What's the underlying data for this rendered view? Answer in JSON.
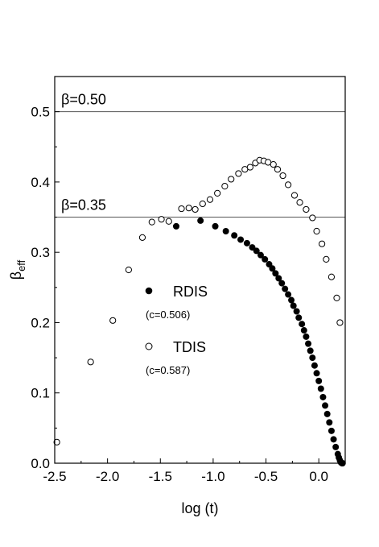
{
  "chart_data": {
    "type": "scatter",
    "title": "",
    "xlabel": "log (t)",
    "ylabel_main": "β",
    "ylabel_sub": "eff",
    "xlim": [
      -2.5,
      0.25
    ],
    "ylim": [
      0.0,
      0.55
    ],
    "x_ticks": [
      -2.5,
      -2.0,
      -1.5,
      -1.0,
      -0.5,
      0.0
    ],
    "x_tick_labels": [
      "-2.5",
      "-2.0",
      "-1.5",
      "-1.0",
      "-0.5",
      "0.0"
    ],
    "y_ticks": [
      0.0,
      0.1,
      0.2,
      0.3,
      0.4,
      0.5
    ],
    "y_tick_labels": [
      "0.0",
      "0.1",
      "0.2",
      "0.3",
      "0.4",
      "0.5"
    ],
    "grid": false,
    "reference_lines": [
      {
        "y": 0.5,
        "label": "β=0.50"
      },
      {
        "y": 0.35,
        "label": "β=0.35"
      }
    ],
    "legend_placement": "center",
    "series": [
      {
        "name": "RDIS",
        "note": "(c=0.506)",
        "marker": "filled-circle",
        "color": "#000000",
        "x": [
          -1.35,
          -1.12,
          -0.98,
          -0.88,
          -0.8,
          -0.74,
          -0.68,
          -0.63,
          -0.59,
          -0.55,
          -0.51,
          -0.47,
          -0.44,
          -0.41,
          -0.38,
          -0.35,
          -0.32,
          -0.29,
          -0.26,
          -0.24,
          -0.21,
          -0.19,
          -0.16,
          -0.14,
          -0.12,
          -0.1,
          -0.08,
          -0.06,
          -0.04,
          -0.02,
          0.0,
          0.02,
          0.04,
          0.06,
          0.08,
          0.1,
          0.12,
          0.14,
          0.16,
          0.18,
          0.19,
          0.2,
          0.21,
          0.22,
          0.225
        ],
        "y": [
          0.337,
          0.345,
          0.337,
          0.33,
          0.324,
          0.318,
          0.313,
          0.307,
          0.302,
          0.296,
          0.29,
          0.283,
          0.277,
          0.27,
          0.263,
          0.256,
          0.248,
          0.24,
          0.232,
          0.224,
          0.216,
          0.207,
          0.198,
          0.189,
          0.18,
          0.17,
          0.16,
          0.15,
          0.139,
          0.128,
          0.117,
          0.106,
          0.094,
          0.082,
          0.07,
          0.058,
          0.046,
          0.034,
          0.023,
          0.013,
          0.008,
          0.004,
          0.001,
          0.0,
          0.0
        ]
      },
      {
        "name": "TDIS",
        "note": "(c=0.587)",
        "marker": "open-circle",
        "color": "#000000",
        "x": [
          -2.48,
          -2.16,
          -1.95,
          -1.8,
          -1.67,
          -1.58,
          -1.49,
          -1.42,
          -1.3,
          -1.23,
          -1.17,
          -1.1,
          -1.03,
          -0.96,
          -0.89,
          -0.83,
          -0.76,
          -0.7,
          -0.65,
          -0.6,
          -0.56,
          -0.52,
          -0.48,
          -0.43,
          -0.39,
          -0.34,
          -0.29,
          -0.23,
          -0.18,
          -0.12,
          -0.06,
          -0.02,
          0.03,
          0.07,
          0.12,
          0.17,
          0.2
        ],
        "y": [
          0.03,
          0.144,
          0.203,
          0.275,
          0.321,
          0.343,
          0.347,
          0.344,
          0.362,
          0.363,
          0.361,
          0.369,
          0.375,
          0.384,
          0.394,
          0.404,
          0.412,
          0.418,
          0.421,
          0.427,
          0.431,
          0.43,
          0.428,
          0.425,
          0.418,
          0.409,
          0.396,
          0.381,
          0.371,
          0.361,
          0.349,
          0.33,
          0.312,
          0.29,
          0.265,
          0.235,
          0.2
        ]
      }
    ]
  }
}
